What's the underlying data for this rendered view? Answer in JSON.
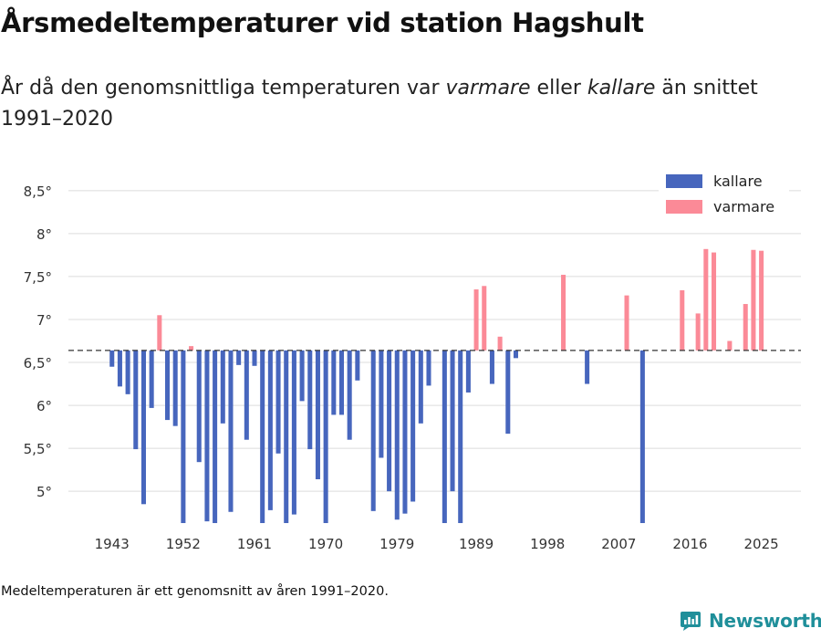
{
  "title": "Årsmedeltemperaturer vid station Hagshult",
  "subtitle": {
    "prefix": "År då den genomsnittliga temperaturen var ",
    "warm_word": "varmare",
    "middle": " eller ",
    "cold_word": "kallare",
    "suffix": " än snittet 1991–2020"
  },
  "footnote": "Medeltemperaturen är ett genomsnitt av åren 1991–2020.",
  "brand": {
    "name": "Newsworthy",
    "icon": "newsworthy-logo-icon"
  },
  "colors": {
    "cold": "#4766bd",
    "warm": "#fb8a97",
    "grid": "#dcdcdc",
    "baseline": "#333333",
    "text": "#333333"
  },
  "chart_data": {
    "type": "bar",
    "title": "Årsmedeltemperaturer vid station Hagshult",
    "xlabel": "",
    "ylabel": "",
    "baseline": 6.64,
    "baseline_label": "snittet 1991–2020",
    "ylim": [
      4.63,
      8.7
    ],
    "xlim": [
      1937.5,
      2030.0
    ],
    "y_ticks": [
      5,
      5.5,
      6,
      6.5,
      7,
      7.5,
      8,
      8.5
    ],
    "y_tick_labels": [
      "5°",
      "5,5°",
      "6°",
      "6,5°",
      "7°",
      "7,5°",
      "8°",
      "8,5°"
    ],
    "x_ticks": [
      1943,
      1952,
      1961,
      1970,
      1979,
      1989,
      1998,
      2007,
      2016,
      2025
    ],
    "x_tick_labels": [
      "1943",
      "1952",
      "1961",
      "1970",
      "1979",
      "1989",
      "1998",
      "2007",
      "2016",
      "2025"
    ],
    "legend": {
      "position": "top-right",
      "entries": [
        {
          "name": "kallare",
          "color": "#4766bd"
        },
        {
          "name": "varmare",
          "color": "#fb8a97"
        }
      ]
    },
    "series": [
      {
        "name": "kallare",
        "color": "#4766bd",
        "points": [
          {
            "year": 1943,
            "value": 6.45
          },
          {
            "year": 1944,
            "value": 6.22
          },
          {
            "year": 1945,
            "value": 6.13
          },
          {
            "year": 1946,
            "value": 5.49
          },
          {
            "year": 1947,
            "value": 4.85
          },
          {
            "year": 1948,
            "value": 5.97
          },
          {
            "year": 1950,
            "value": 5.83
          },
          {
            "year": 1951,
            "value": 5.76
          },
          {
            "year": 1952,
            "value": 4.63
          },
          {
            "year": 1954,
            "value": 5.34
          },
          {
            "year": 1955,
            "value": 4.65
          },
          {
            "year": 1956,
            "value": 4.63
          },
          {
            "year": 1957,
            "value": 5.79
          },
          {
            "year": 1958,
            "value": 4.76
          },
          {
            "year": 1959,
            "value": 6.47
          },
          {
            "year": 1960,
            "value": 5.6
          },
          {
            "year": 1961,
            "value": 6.46
          },
          {
            "year": 1962,
            "value": 4.63
          },
          {
            "year": 1963,
            "value": 4.78
          },
          {
            "year": 1964,
            "value": 5.44
          },
          {
            "year": 1965,
            "value": 4.63
          },
          {
            "year": 1966,
            "value": 4.73
          },
          {
            "year": 1967,
            "value": 6.05
          },
          {
            "year": 1968,
            "value": 5.49
          },
          {
            "year": 1969,
            "value": 5.14
          },
          {
            "year": 1970,
            "value": 4.63
          },
          {
            "year": 1971,
            "value": 5.89
          },
          {
            "year": 1972,
            "value": 5.89
          },
          {
            "year": 1973,
            "value": 5.6
          },
          {
            "year": 1974,
            "value": 6.29
          },
          {
            "year": 1976,
            "value": 4.77
          },
          {
            "year": 1977,
            "value": 5.39
          },
          {
            "year": 1978,
            "value": 5.0
          },
          {
            "year": 1979,
            "value": 4.67
          },
          {
            "year": 1980,
            "value": 4.74
          },
          {
            "year": 1981,
            "value": 4.88
          },
          {
            "year": 1982,
            "value": 5.79
          },
          {
            "year": 1983,
            "value": 6.23
          },
          {
            "year": 1985,
            "value": 4.63
          },
          {
            "year": 1986,
            "value": 5.0
          },
          {
            "year": 1987,
            "value": 4.63
          },
          {
            "year": 1988,
            "value": 6.15
          },
          {
            "year": 1991,
            "value": 6.25
          },
          {
            "year": 1993,
            "value": 5.67
          },
          {
            "year": 1994,
            "value": 6.55
          },
          {
            "year": 2003,
            "value": 6.25
          },
          {
            "year": 2010,
            "value": 4.63
          }
        ]
      },
      {
        "name": "varmare",
        "color": "#fb8a97",
        "points": [
          {
            "year": 1949,
            "value": 7.05
          },
          {
            "year": 1953,
            "value": 6.69
          },
          {
            "year": 1989,
            "value": 7.35
          },
          {
            "year": 1990,
            "value": 7.39
          },
          {
            "year": 1992,
            "value": 6.8
          },
          {
            "year": 2000,
            "value": 7.52
          },
          {
            "year": 2008,
            "value": 7.28
          },
          {
            "year": 2015,
            "value": 7.34
          },
          {
            "year": 2017,
            "value": 7.07
          },
          {
            "year": 2018,
            "value": 7.82
          },
          {
            "year": 2019,
            "value": 7.78
          },
          {
            "year": 2021,
            "value": 6.75
          },
          {
            "year": 2023,
            "value": 7.18
          },
          {
            "year": 2024,
            "value": 7.81
          },
          {
            "year": 2025,
            "value": 7.8
          }
        ]
      }
    ]
  }
}
